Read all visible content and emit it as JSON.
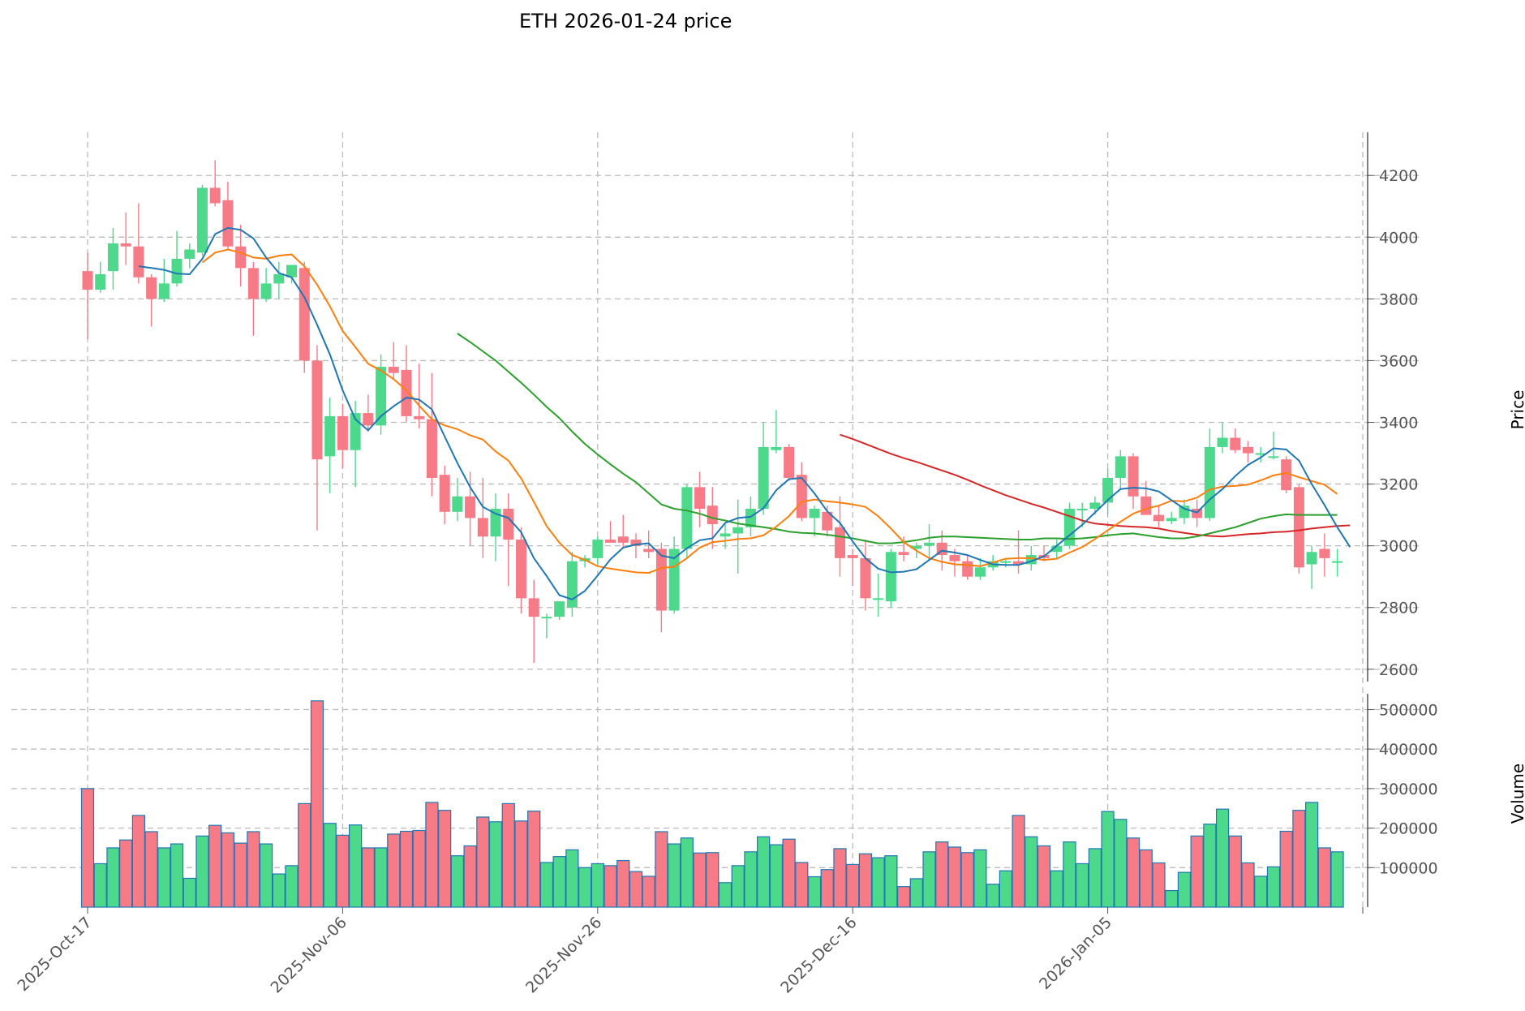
{
  "chart_data": {
    "type": "candlestick",
    "title": "ETH  2026-01-24  price",
    "ylabel_price": "Price",
    "ylabel_volume": "Volume",
    "price_ylim": [
      2560,
      4340
    ],
    "volume_ylim": [
      0,
      540000
    ],
    "price_ticks": [
      2600,
      2800,
      3000,
      3200,
      3400,
      3600,
      3800,
      4000,
      4200
    ],
    "volume_ticks": [
      100000,
      200000,
      300000,
      400000,
      500000
    ],
    "x_ticks": [
      {
        "index": 0,
        "label": "2025-Oct-17"
      },
      {
        "index": 20,
        "label": "2025-Nov-06"
      },
      {
        "index": 40,
        "label": "2025-Nov-26"
      },
      {
        "index": 60,
        "label": "2025-Dec-16"
      },
      {
        "index": 80,
        "label": "2026-Jan-05"
      }
    ],
    "colors": {
      "up": "#4cd98c",
      "down": "#f77b86",
      "vol_edge": "#1f77b4",
      "ma5": "#1f77b4",
      "ma10": "#ff7f0e",
      "ma30": "#2ca02c",
      "ma60": "#d62728",
      "grid": "#bbbbbb",
      "tick": "#555555"
    },
    "candles": [
      [
        3890,
        3950,
        3670,
        3830,
        300000
      ],
      [
        3830,
        3920,
        3820,
        3880,
        110000
      ],
      [
        3890,
        4030,
        3830,
        3980,
        150000
      ],
      [
        3980,
        4080,
        3910,
        3970,
        170000
      ],
      [
        3970,
        4110,
        3850,
        3870,
        232000
      ],
      [
        3870,
        3880,
        3710,
        3800,
        191000
      ],
      [
        3800,
        3930,
        3790,
        3850,
        150000
      ],
      [
        3850,
        4020,
        3840,
        3930,
        160000
      ],
      [
        3930,
        3980,
        3900,
        3960,
        73000
      ],
      [
        3950,
        4170,
        3940,
        4160,
        180000
      ],
      [
        4160,
        4250,
        4100,
        4110,
        207000
      ],
      [
        4120,
        4180,
        3960,
        3970,
        188000
      ],
      [
        3970,
        4040,
        3840,
        3900,
        162000
      ],
      [
        3900,
        3920,
        3680,
        3800,
        191000
      ],
      [
        3800,
        3900,
        3790,
        3850,
        160000
      ],
      [
        3850,
        3920,
        3800,
        3880,
        84000
      ],
      [
        3870,
        3910,
        3850,
        3910,
        105000
      ],
      [
        3900,
        3920,
        3560,
        3600,
        262000
      ],
      [
        3600,
        3650,
        3050,
        3280,
        522000
      ],
      [
        3290,
        3480,
        3170,
        3420,
        212000
      ],
      [
        3420,
        3460,
        3250,
        3310,
        182000
      ],
      [
        3310,
        3470,
        3190,
        3430,
        208000
      ],
      [
        3430,
        3490,
        3370,
        3390,
        150000
      ],
      [
        3390,
        3620,
        3360,
        3580,
        150000
      ],
      [
        3580,
        3660,
        3540,
        3560,
        185000
      ],
      [
        3570,
        3650,
        3400,
        3420,
        192000
      ],
      [
        3420,
        3590,
        3380,
        3410,
        194000
      ],
      [
        3410,
        3560,
        3160,
        3220,
        265000
      ],
      [
        3230,
        3260,
        3070,
        3110,
        245000
      ],
      [
        3110,
        3220,
        3080,
        3160,
        130000
      ],
      [
        3160,
        3240,
        3000,
        3090,
        155000
      ],
      [
        3090,
        3220,
        2960,
        3030,
        228000
      ],
      [
        3030,
        3170,
        2950,
        3120,
        216000
      ],
      [
        3120,
        3170,
        2870,
        3020,
        262000
      ],
      [
        3020,
        3060,
        2780,
        2830,
        218000
      ],
      [
        2830,
        2890,
        2620,
        2770,
        243000
      ],
      [
        2770,
        2780,
        2700,
        2770,
        113000
      ],
      [
        2770,
        2820,
        2760,
        2820,
        128000
      ],
      [
        2800,
        2980,
        2770,
        2950,
        145000
      ],
      [
        2950,
        2970,
        2930,
        2960,
        100000
      ],
      [
        2960,
        3030,
        2940,
        3020,
        110000
      ],
      [
        3020,
        3080,
        3010,
        3010,
        105000
      ],
      [
        3030,
        3100,
        2990,
        3010,
        118000
      ],
      [
        3020,
        3040,
        2960,
        3000,
        90000
      ],
      [
        2990,
        3050,
        2960,
        2980,
        78000
      ],
      [
        2990,
        3010,
        2720,
        2790,
        191000
      ],
      [
        2790,
        3030,
        2780,
        2990,
        160000
      ],
      [
        2990,
        3200,
        2960,
        3190,
        175000
      ],
      [
        3190,
        3240,
        3060,
        3120,
        137000
      ],
      [
        3130,
        3190,
        2990,
        3070,
        138000
      ],
      [
        3030,
        3070,
        2990,
        3040,
        62000
      ],
      [
        3040,
        3150,
        2910,
        3060,
        105000
      ],
      [
        3060,
        3160,
        3030,
        3120,
        140000
      ],
      [
        3120,
        3400,
        3100,
        3320,
        178000
      ],
      [
        3310,
        3440,
        3300,
        3320,
        158000
      ],
      [
        3320,
        3330,
        3210,
        3220,
        172000
      ],
      [
        3230,
        3270,
        3080,
        3090,
        113000
      ],
      [
        3090,
        3130,
        3030,
        3120,
        77000
      ],
      [
        3110,
        3130,
        3030,
        3050,
        95000
      ],
      [
        3060,
        3160,
        2900,
        2960,
        148000
      ],
      [
        2970,
        2990,
        2870,
        2960,
        108000
      ],
      [
        2960,
        3020,
        2790,
        2830,
        135000
      ],
      [
        2830,
        2910,
        2770,
        2830,
        125000
      ],
      [
        2820,
        2990,
        2800,
        2980,
        130000
      ],
      [
        2980,
        3030,
        2950,
        2970,
        52000
      ],
      [
        2990,
        3010,
        2960,
        3000,
        72000
      ],
      [
        3000,
        3070,
        2950,
        3010,
        140000
      ],
      [
        3010,
        3050,
        2920,
        2970,
        165000
      ],
      [
        2970,
        2990,
        2900,
        2950,
        152000
      ],
      [
        2950,
        2970,
        2890,
        2900,
        138000
      ],
      [
        2900,
        2960,
        2890,
        2930,
        145000
      ],
      [
        2930,
        2970,
        2920,
        2950,
        58000
      ],
      [
        2950,
        2960,
        2930,
        2950,
        92000
      ],
      [
        2950,
        3050,
        2910,
        2940,
        232000
      ],
      [
        2940,
        3000,
        2920,
        2970,
        178000
      ],
      [
        2970,
        3000,
        2950,
        2960,
        155000
      ],
      [
        2980,
        3020,
        2960,
        3000,
        92000
      ],
      [
        3000,
        3140,
        2990,
        3120,
        165000
      ],
      [
        3120,
        3140,
        3060,
        3120,
        110000
      ],
      [
        3120,
        3160,
        3100,
        3140,
        148000
      ],
      [
        3140,
        3250,
        3100,
        3220,
        242000
      ],
      [
        3220,
        3310,
        3180,
        3290,
        222000
      ],
      [
        3290,
        3300,
        3120,
        3160,
        175000
      ],
      [
        3160,
        3210,
        3100,
        3100,
        145000
      ],
      [
        3100,
        3130,
        3060,
        3080,
        112000
      ],
      [
        3080,
        3110,
        3070,
        3090,
        42000
      ],
      [
        3090,
        3150,
        3070,
        3130,
        88000
      ],
      [
        3120,
        3150,
        3060,
        3090,
        180000
      ],
      [
        3090,
        3380,
        3080,
        3320,
        210000
      ],
      [
        3320,
        3400,
        3300,
        3350,
        248000
      ],
      [
        3350,
        3380,
        3300,
        3310,
        180000
      ],
      [
        3320,
        3340,
        3270,
        3300,
        112000
      ],
      [
        3300,
        3320,
        3270,
        3300,
        78000
      ],
      [
        3290,
        3370,
        3280,
        3290,
        102000
      ],
      [
        3280,
        3290,
        3170,
        3180,
        192000
      ],
      [
        3190,
        3200,
        2910,
        2930,
        245000
      ],
      [
        2940,
        3000,
        2860,
        2980,
        265000
      ],
      [
        2990,
        3040,
        2900,
        2960,
        150000
      ],
      [
        2950,
        2990,
        2900,
        2950,
        140000
      ]
    ],
    "ma5_values": [
      null,
      null,
      null,
      null,
      3906,
      3900,
      3894,
      3882,
      3880,
      3930,
      4010,
      4030,
      4024,
      3996,
      3934,
      3884,
      3870,
      3806,
      3716,
      3620,
      3504,
      3410,
      3374,
      3420,
      3452,
      3480,
      3474,
      3442,
      3354,
      3268,
      3190,
      3126,
      3104,
      3090,
      3044,
      2960,
      2902,
      2840,
      2826,
      2854,
      2904,
      2956,
      2994,
      3004,
      3008,
      2968,
      2960,
      2992,
      3018,
      3024,
      3074,
      3090,
      3094,
      3122,
      3180,
      3216,
      3220,
      3170,
      3112,
      3074,
      3014,
      2960,
      2926,
      2914,
      2916,
      2924,
      2954,
      2984,
      2978,
      2970,
      2954,
      2940,
      2938,
      2938,
      2950,
      2966,
      3000,
      3034,
      3068,
      3108,
      3148,
      3184,
      3188,
      3186,
      3176,
      3148,
      3120,
      3108,
      3150,
      3184,
      3226,
      3262,
      3286,
      3316,
      3312,
      3276,
      3200,
      3132,
      3060,
      2996
    ],
    "ma10_values": [
      null,
      null,
      null,
      null,
      null,
      null,
      null,
      null,
      null,
      3918,
      3950,
      3960,
      3950,
      3934,
      3930,
      3940,
      3944,
      3906,
      3846,
      3776,
      3696,
      3644,
      3590,
      3568,
      3540,
      3504,
      3454,
      3410,
      3390,
      3378,
      3358,
      3344,
      3306,
      3276,
      3218,
      3142,
      3064,
      3010,
      2970,
      2954,
      2934,
      2926,
      2920,
      2914,
      2912,
      2928,
      2932,
      2960,
      2994,
      3012,
      3016,
      3022,
      3024,
      3034,
      3062,
      3096,
      3142,
      3150,
      3144,
      3140,
      3134,
      3126,
      3096,
      3056,
      3012,
      2984,
      2960,
      2948,
      2940,
      2938,
      2934,
      2946,
      2958,
      2960,
      2960,
      2954,
      2958,
      2978,
      2996,
      3022,
      3050,
      3078,
      3104,
      3120,
      3130,
      3146,
      3144,
      3156,
      3182,
      3192,
      3194,
      3198,
      3212,
      3228,
      3236,
      3222,
      3210,
      3198,
      3168
    ],
    "ma30_values": [
      null,
      null,
      null,
      null,
      null,
      null,
      null,
      null,
      null,
      null,
      null,
      null,
      null,
      null,
      null,
      null,
      null,
      null,
      null,
      null,
      null,
      null,
      null,
      null,
      null,
      null,
      null,
      null,
      null,
      3688,
      3660,
      3630,
      3600,
      3564,
      3528,
      3490,
      3450,
      3414,
      3370,
      3330,
      3296,
      3264,
      3234,
      3206,
      3170,
      3134,
      3120,
      3114,
      3104,
      3090,
      3082,
      3072,
      3066,
      3060,
      3054,
      3046,
      3042,
      3040,
      3036,
      3030,
      3024,
      3016,
      3008,
      3008,
      3012,
      3018,
      3026,
      3030,
      3030,
      3028,
      3026,
      3024,
      3022,
      3020,
      3020,
      3024,
      3024,
      3022,
      3024,
      3028,
      3034,
      3038,
      3040,
      3034,
      3028,
      3024,
      3024,
      3030,
      3040,
      3050,
      3060,
      3074,
      3088,
      3096,
      3102,
      3100,
      3100,
      3100,
      3100
    ],
    "ma60_values": [
      null,
      null,
      null,
      null,
      null,
      null,
      null,
      null,
      null,
      null,
      null,
      null,
      null,
      null,
      null,
      null,
      null,
      null,
      null,
      null,
      null,
      null,
      null,
      null,
      null,
      null,
      null,
      null,
      null,
      null,
      null,
      null,
      null,
      null,
      null,
      null,
      null,
      null,
      null,
      null,
      null,
      null,
      null,
      null,
      null,
      null,
      null,
      null,
      null,
      null,
      null,
      null,
      null,
      null,
      null,
      null,
      null,
      null,
      null,
      3360,
      3346,
      3330,
      3314,
      3298,
      3284,
      3272,
      3258,
      3244,
      3230,
      3214,
      3196,
      3180,
      3164,
      3150,
      3136,
      3124,
      3110,
      3096,
      3082,
      3072,
      3068,
      3064,
      3062,
      3060,
      3056,
      3048,
      3042,
      3036,
      3032,
      3030,
      3034,
      3038,
      3040,
      3044,
      3046,
      3050,
      3056,
      3060,
      3064,
      3066
    ]
  }
}
